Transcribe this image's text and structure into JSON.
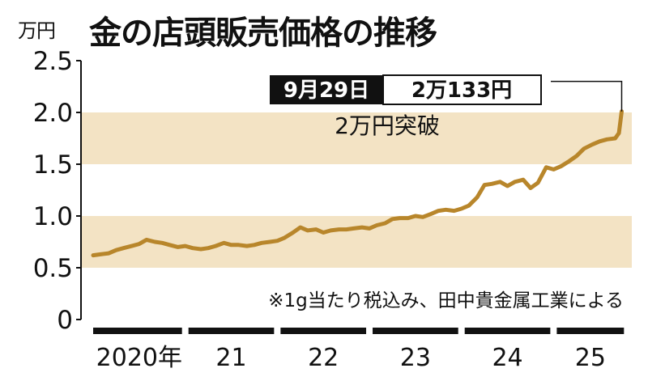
{
  "chart_data": {
    "type": "line",
    "title": "金の店頭販売価格の推移",
    "ylabel": "万円",
    "xlabel": "",
    "ylim": [
      0,
      2.5
    ],
    "y_ticks": [
      "0",
      "0.5",
      "1.0",
      "1.5",
      "2.0",
      "2.5"
    ],
    "x_ticks": [
      "2020年",
      "21",
      "22",
      "23",
      "24",
      "25"
    ],
    "grid": "alternating horizontal bands",
    "note": "※1g当たり税込み、田中貴金属工業による",
    "callout": {
      "date": "9月29日",
      "value": "2万133円",
      "annotation": "2万円突破"
    },
    "series": [
      {
        "color": "#b8862b",
        "points": [
          [
            2020.0,
            0.62
          ],
          [
            2020.08,
            0.63
          ],
          [
            2020.17,
            0.64
          ],
          [
            2020.25,
            0.67
          ],
          [
            2020.33,
            0.69
          ],
          [
            2020.42,
            0.71
          ],
          [
            2020.5,
            0.73
          ],
          [
            2020.58,
            0.77
          ],
          [
            2020.67,
            0.75
          ],
          [
            2020.75,
            0.74
          ],
          [
            2020.83,
            0.72
          ],
          [
            2020.92,
            0.7
          ],
          [
            2021.0,
            0.71
          ],
          [
            2021.08,
            0.69
          ],
          [
            2021.17,
            0.68
          ],
          [
            2021.25,
            0.69
          ],
          [
            2021.33,
            0.71
          ],
          [
            2021.42,
            0.74
          ],
          [
            2021.5,
            0.72
          ],
          [
            2021.58,
            0.72
          ],
          [
            2021.67,
            0.71
          ],
          [
            2021.75,
            0.72
          ],
          [
            2021.83,
            0.74
          ],
          [
            2021.92,
            0.75
          ],
          [
            2022.0,
            0.76
          ],
          [
            2022.08,
            0.79
          ],
          [
            2022.17,
            0.84
          ],
          [
            2022.25,
            0.89
          ],
          [
            2022.33,
            0.86
          ],
          [
            2022.42,
            0.87
          ],
          [
            2022.5,
            0.84
          ],
          [
            2022.58,
            0.86
          ],
          [
            2022.67,
            0.87
          ],
          [
            2022.75,
            0.87
          ],
          [
            2022.83,
            0.88
          ],
          [
            2022.92,
            0.89
          ],
          [
            2023.0,
            0.88
          ],
          [
            2023.08,
            0.91
          ],
          [
            2023.17,
            0.93
          ],
          [
            2023.25,
            0.97
          ],
          [
            2023.33,
            0.98
          ],
          [
            2023.42,
            0.98
          ],
          [
            2023.5,
            1.0
          ],
          [
            2023.58,
            0.99
          ],
          [
            2023.67,
            1.02
          ],
          [
            2023.75,
            1.05
          ],
          [
            2023.83,
            1.06
          ],
          [
            2023.92,
            1.05
          ],
          [
            2024.0,
            1.07
          ],
          [
            2024.08,
            1.1
          ],
          [
            2024.17,
            1.18
          ],
          [
            2024.25,
            1.3
          ],
          [
            2024.33,
            1.31
          ],
          [
            2024.42,
            1.33
          ],
          [
            2024.5,
            1.29
          ],
          [
            2024.58,
            1.33
          ],
          [
            2024.67,
            1.35
          ],
          [
            2024.75,
            1.27
          ],
          [
            2024.83,
            1.32
          ],
          [
            2024.92,
            1.47
          ],
          [
            2025.0,
            1.45
          ],
          [
            2025.08,
            1.48
          ],
          [
            2025.17,
            1.53
          ],
          [
            2025.25,
            1.58
          ],
          [
            2025.33,
            1.65
          ],
          [
            2025.42,
            1.69
          ],
          [
            2025.5,
            1.72
          ],
          [
            2025.58,
            1.74
          ],
          [
            2025.67,
            1.75
          ],
          [
            2025.71,
            1.8
          ],
          [
            2025.74,
            2.01
          ]
        ]
      }
    ]
  }
}
